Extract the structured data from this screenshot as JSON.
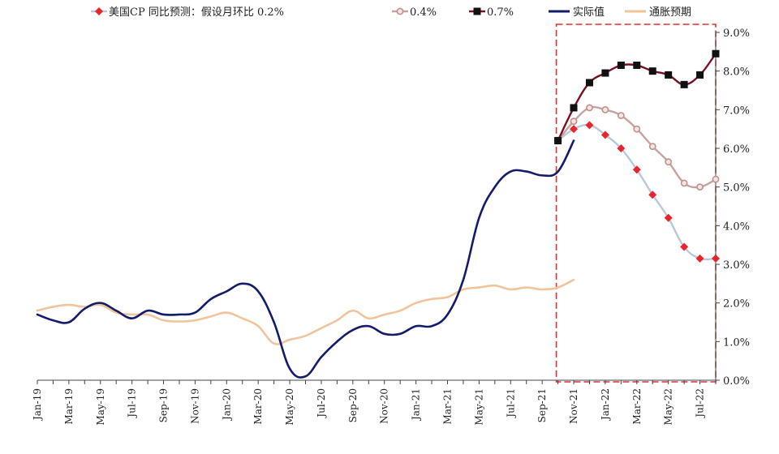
{
  "chart_data": {
    "type": "line",
    "title": "",
    "xlabel": "",
    "ylabel": "",
    "ylim": [
      0,
      9
    ],
    "y_tick_format": "percent_1dp",
    "y_ticks": [
      "0.0%",
      "1.0%",
      "2.0%",
      "3.0%",
      "4.0%",
      "5.0%",
      "6.0%",
      "7.0%",
      "8.0%",
      "9.0%"
    ],
    "months": [
      "Jan-19",
      "Feb-19",
      "Mar-19",
      "Apr-19",
      "May-19",
      "Jun-19",
      "Jul-19",
      "Aug-19",
      "Sep-19",
      "Oct-19",
      "Nov-19",
      "Dec-19",
      "Jan-20",
      "Feb-20",
      "Mar-20",
      "Apr-20",
      "May-20",
      "Jun-20",
      "Jul-20",
      "Aug-20",
      "Sep-20",
      "Oct-20",
      "Nov-20",
      "Dec-20",
      "Jan-21",
      "Feb-21",
      "Mar-21",
      "Apr-21",
      "May-21",
      "Jun-21",
      "Jul-21",
      "Aug-21",
      "Sep-21",
      "Oct-21",
      "Nov-21",
      "Dec-21",
      "Jan-22",
      "Feb-22",
      "Mar-22",
      "Apr-22",
      "May-22",
      "Jun-22",
      "Jul-22",
      "Aug-22"
    ],
    "x_tick_labels": [
      "Jan-19",
      "Mar-19",
      "May-19",
      "Jul-19",
      "Sep-19",
      "Nov-19",
      "Jan-20",
      "Mar-20",
      "May-20",
      "Jul-20",
      "Sep-20",
      "Nov-20",
      "Jan-21",
      "Mar-21",
      "May-21",
      "Jul-21",
      "Sep-21",
      "Nov-21",
      "Jan-22",
      "Mar-22",
      "May-22",
      "Jul-22"
    ],
    "legend_position": "top",
    "forecast_box": {
      "x_start": "Oct-21",
      "x_end": "Aug-22",
      "color": "#e0302e"
    },
    "series": [
      {
        "name": "美国CP 同比预测：假设月环比 0.2%",
        "color": "#b9c7dc",
        "marker": "diamond",
        "marker_color": "#e8252b",
        "x_start": "Oct-21",
        "values": [
          6.2,
          6.5,
          6.6,
          6.35,
          6.0,
          5.45,
          4.8,
          4.2,
          3.45,
          3.15,
          3.15
        ]
      },
      {
        "name": "0.4%",
        "color": "#c5a3a0",
        "marker": "circle",
        "marker_color": "#c58f8b",
        "x_start": "Oct-21",
        "values": [
          6.2,
          6.7,
          7.05,
          7.0,
          6.85,
          6.5,
          6.05,
          5.65,
          5.1,
          5.0,
          5.2
        ]
      },
      {
        "name": "0.7%",
        "color": "#7a1020",
        "marker": "square",
        "marker_color": "#111111",
        "x_start": "Oct-21",
        "values": [
          6.2,
          7.05,
          7.7,
          7.95,
          8.15,
          8.15,
          8.0,
          7.9,
          7.65,
          7.9,
          8.45
        ]
      },
      {
        "name": "实际值",
        "color": "#131c6b",
        "marker": "none",
        "x_start": "Jan-19",
        "values": [
          1.7,
          1.55,
          1.5,
          1.85,
          2.0,
          1.8,
          1.6,
          1.8,
          1.7,
          1.7,
          1.75,
          2.1,
          2.3,
          2.5,
          2.3,
          1.5,
          0.3,
          0.1,
          0.6,
          1.0,
          1.3,
          1.4,
          1.2,
          1.2,
          1.4,
          1.4,
          1.7,
          2.6,
          4.2,
          5.0,
          5.4,
          5.4,
          5.3,
          5.4,
          6.2
        ]
      },
      {
        "name": "通胀预期",
        "color": "#f2c49c",
        "marker": "none",
        "x_start": "Jan-19",
        "values": [
          1.8,
          1.9,
          1.95,
          1.9,
          1.95,
          1.75,
          1.7,
          1.7,
          1.55,
          1.52,
          1.55,
          1.65,
          1.75,
          1.6,
          1.4,
          0.95,
          1.05,
          1.15,
          1.35,
          1.55,
          1.8,
          1.6,
          1.7,
          1.8,
          2.0,
          2.1,
          2.15,
          2.35,
          2.4,
          2.45,
          2.35,
          2.4,
          2.35,
          2.4,
          2.6
        ]
      }
    ]
  }
}
